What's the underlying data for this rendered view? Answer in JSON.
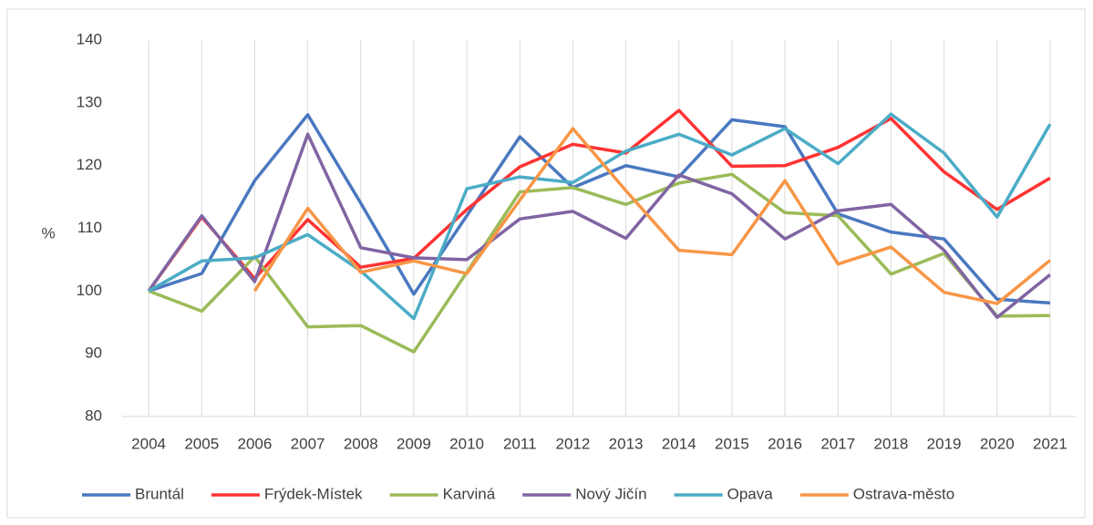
{
  "chart_data": {
    "type": "line",
    "ylabel": "%",
    "categories": [
      "2004",
      "2005",
      "2006",
      "2007",
      "2008",
      "2009",
      "2010",
      "2011",
      "2012",
      "2013",
      "2014",
      "2015",
      "2016",
      "2017",
      "2018",
      "2019",
      "2020",
      "2021"
    ],
    "series": [
      {
        "name": "Bruntál",
        "color": "#4a78c0",
        "values": [
          100,
          102.8,
          117.6,
          128.1,
          114,
          99.5,
          112,
          124.6,
          116.5,
          120,
          118.2,
          127.3,
          126.2,
          112.3,
          109.4,
          108.3,
          98.7,
          98.1
        ]
      },
      {
        "name": "Frýdek-Místek",
        "color": "#ff3333",
        "values": [
          100,
          111.8,
          102,
          111.4,
          103.8,
          105.2,
          113,
          119.8,
          123.4,
          122,
          128.8,
          119.9,
          120,
          122.9,
          127.5,
          119,
          113,
          118
        ]
      },
      {
        "name": "Karviná",
        "color": "#9bbb59",
        "values": [
          100,
          96.8,
          105.5,
          94.3,
          94.5,
          90.3,
          103,
          115.8,
          116.5,
          113.8,
          117.2,
          118.6,
          112.5,
          112,
          102.7,
          106,
          96,
          96.1
        ]
      },
      {
        "name": "Nový Jičín",
        "color": "#8064a2",
        "values": [
          100,
          112,
          101.5,
          125,
          106.9,
          105.3,
          105,
          111.5,
          112.7,
          108.4,
          118.5,
          115.5,
          108.3,
          112.8,
          113.8,
          106.5,
          95.8,
          102.6
        ]
      },
      {
        "name": "Opava",
        "color": "#4bacc6",
        "values": [
          100,
          104.8,
          105.3,
          109,
          103.2,
          95.6,
          116.3,
          118.2,
          117.3,
          122.3,
          125,
          121.7,
          125.9,
          120.3,
          128.2,
          122,
          111.8,
          126.6
        ]
      },
      {
        "name": "Ostrava-město",
        "color": "#f79646",
        "values": [
          null,
          null,
          100,
          113.2,
          103,
          104.8,
          102.8,
          114.5,
          125.9,
          116,
          106.5,
          105.8,
          117.6,
          104.3,
          107,
          99.8,
          98,
          104.9
        ]
      }
    ],
    "ylim": [
      80,
      140
    ],
    "yticks": [
      80,
      90,
      100,
      110,
      120,
      130,
      140
    ],
    "grid": true,
    "legend": "bottom"
  }
}
